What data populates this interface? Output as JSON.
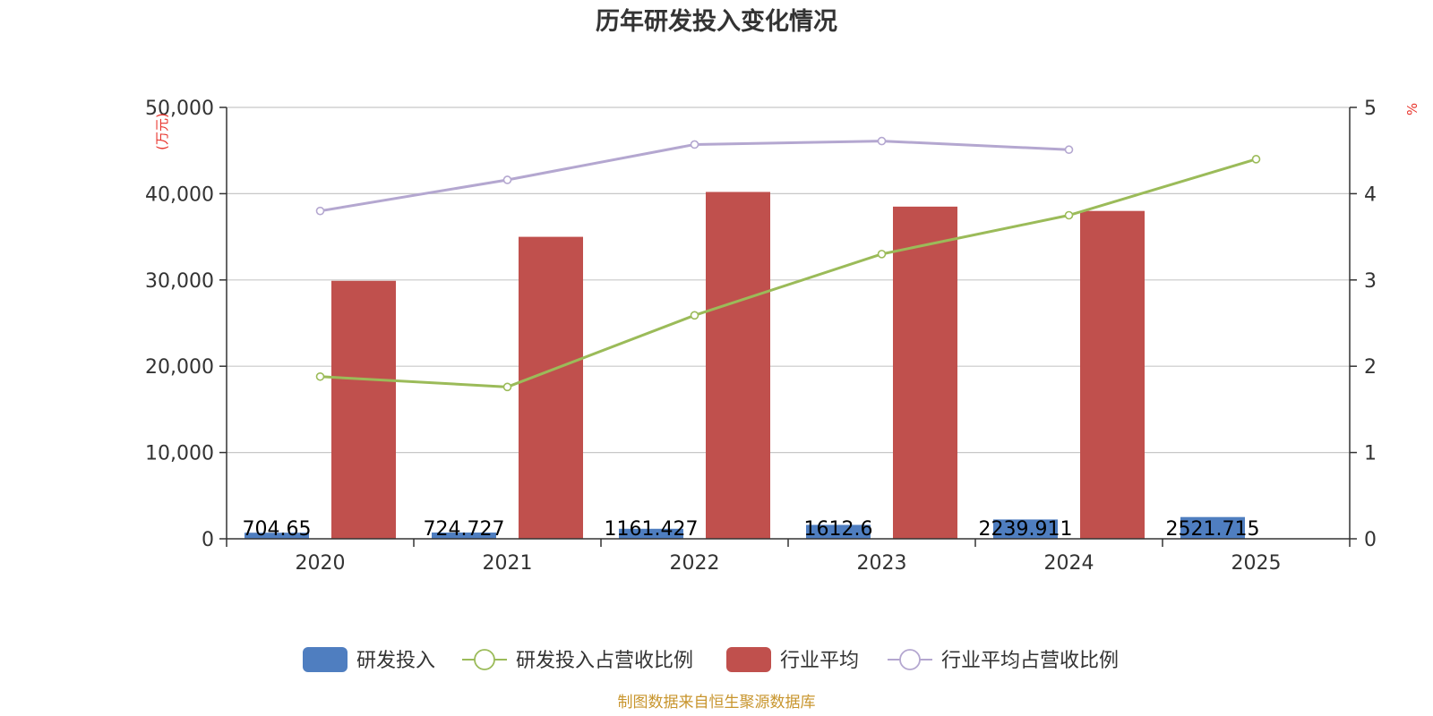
{
  "chart_data": {
    "type": "bar",
    "title": "历年研发投入变化情况",
    "categories": [
      "2020",
      "2021",
      "2022",
      "2023",
      "2024",
      "2025"
    ],
    "y_left": {
      "unit_label": "(万元)",
      "ylim": [
        0,
        50000
      ],
      "ticks": [
        "0",
        "10,000",
        "20,000",
        "30,000",
        "40,000",
        "50,000"
      ]
    },
    "y_right": {
      "unit_label": "%",
      "ylim": [
        0,
        5
      ],
      "ticks": [
        "0",
        "1",
        "2",
        "3",
        "4",
        "5"
      ]
    },
    "series": [
      {
        "name": "研发投入",
        "type": "bar",
        "axis": "left",
        "color": "#4f7ec0",
        "values": [
          704.65,
          724.727,
          1161.427,
          1612.6,
          2239.911,
          2521.715
        ],
        "labels": [
          "704.65",
          "724.727",
          "1161.427",
          "1612.6",
          "2239.911",
          "2521.715"
        ]
      },
      {
        "name": "研发投入占营收比例",
        "type": "line",
        "axis": "right",
        "color": "#9bbb59",
        "values": [
          1.88,
          1.76,
          2.59,
          3.3,
          3.75,
          4.4
        ]
      },
      {
        "name": "行业平均",
        "type": "bar",
        "axis": "left",
        "color": "#c0504d",
        "values": [
          29900,
          35000,
          40200,
          38500,
          38000,
          null
        ]
      },
      {
        "name": "行业平均占营收比例",
        "type": "line",
        "axis": "right",
        "color": "#b4a7d0",
        "values": [
          3.8,
          4.16,
          4.57,
          4.61,
          4.51,
          null
        ]
      }
    ],
    "grid": true,
    "legend_position": "bottom-center"
  },
  "footer": {
    "source": "制图数据来自恒生聚源数据库"
  }
}
